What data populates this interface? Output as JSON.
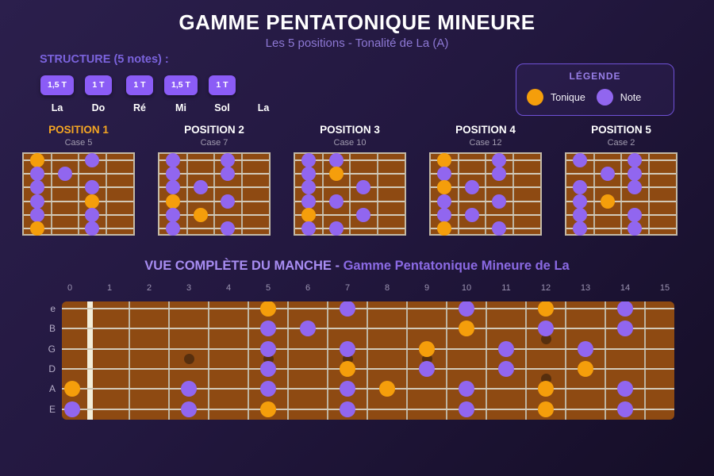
{
  "header": {
    "title": "GAMME PENTATONIQUE MINEURE",
    "subtitle": "Les 5 positions - Tonalité de La (A)"
  },
  "structure": {
    "label": "STRUCTURE (5 notes) :",
    "intervals": [
      "1,5 T",
      "1 T",
      "1 T",
      "1,5 T",
      "1 T"
    ],
    "notes": [
      "La",
      "Do",
      "Ré",
      "Mi",
      "Sol",
      "La"
    ]
  },
  "legend": {
    "title": "LÉGENDE",
    "items": [
      {
        "label": "Tonique",
        "color": "#f59e0b"
      },
      {
        "label": "Note",
        "color": "#9166ef"
      }
    ]
  },
  "colors": {
    "tonique": "#f59e0b",
    "note": "#9166ef",
    "board_brown": "#8e4a12",
    "position1_title": "#f5a623"
  },
  "positions": [
    {
      "title": "POSITION 1",
      "case_label": "Case 5",
      "title_color": "#f5a623",
      "notes": [
        {
          "s": 0,
          "f": 1,
          "t": "T"
        },
        {
          "s": 0,
          "f": 3,
          "t": "N"
        },
        {
          "s": 1,
          "f": 1,
          "t": "N"
        },
        {
          "s": 1,
          "f": 2,
          "t": "N"
        },
        {
          "s": 2,
          "f": 1,
          "t": "N"
        },
        {
          "s": 2,
          "f": 3,
          "t": "N"
        },
        {
          "s": 3,
          "f": 1,
          "t": "N"
        },
        {
          "s": 3,
          "f": 3,
          "t": "T"
        },
        {
          "s": 4,
          "f": 1,
          "t": "N"
        },
        {
          "s": 4,
          "f": 3,
          "t": "N"
        },
        {
          "s": 5,
          "f": 1,
          "t": "T"
        },
        {
          "s": 5,
          "f": 3,
          "t": "N"
        }
      ]
    },
    {
      "title": "POSITION 2",
      "case_label": "Case 7",
      "title_color": "#ffffff",
      "notes": [
        {
          "s": 0,
          "f": 1,
          "t": "N"
        },
        {
          "s": 0,
          "f": 3,
          "t": "N"
        },
        {
          "s": 1,
          "f": 1,
          "t": "N"
        },
        {
          "s": 1,
          "f": 3,
          "t": "N"
        },
        {
          "s": 2,
          "f": 1,
          "t": "N"
        },
        {
          "s": 2,
          "f": 2,
          "t": "N"
        },
        {
          "s": 3,
          "f": 1,
          "t": "T"
        },
        {
          "s": 3,
          "f": 3,
          "t": "N"
        },
        {
          "s": 4,
          "f": 1,
          "t": "N"
        },
        {
          "s": 4,
          "f": 2,
          "t": "T"
        },
        {
          "s": 5,
          "f": 1,
          "t": "N"
        },
        {
          "s": 5,
          "f": 3,
          "t": "N"
        }
      ]
    },
    {
      "title": "POSITION 3",
      "case_label": "Case 10",
      "title_color": "#ffffff",
      "notes": [
        {
          "s": 0,
          "f": 1,
          "t": "N"
        },
        {
          "s": 0,
          "f": 2,
          "t": "N"
        },
        {
          "s": 1,
          "f": 1,
          "t": "N"
        },
        {
          "s": 1,
          "f": 2,
          "t": "T"
        },
        {
          "s": 2,
          "f": 1,
          "t": "N"
        },
        {
          "s": 2,
          "f": 3,
          "t": "N"
        },
        {
          "s": 3,
          "f": 1,
          "t": "N"
        },
        {
          "s": 3,
          "f": 2,
          "t": "N"
        },
        {
          "s": 4,
          "f": 1,
          "t": "T"
        },
        {
          "s": 4,
          "f": 3,
          "t": "N"
        },
        {
          "s": 5,
          "f": 1,
          "t": "N"
        },
        {
          "s": 5,
          "f": 2,
          "t": "N"
        }
      ]
    },
    {
      "title": "POSITION 4",
      "case_label": "Case 12",
      "title_color": "#ffffff",
      "notes": [
        {
          "s": 0,
          "f": 1,
          "t": "T"
        },
        {
          "s": 0,
          "f": 3,
          "t": "N"
        },
        {
          "s": 1,
          "f": 1,
          "t": "N"
        },
        {
          "s": 1,
          "f": 3,
          "t": "N"
        },
        {
          "s": 2,
          "f": 1,
          "t": "T"
        },
        {
          "s": 2,
          "f": 2,
          "t": "N"
        },
        {
          "s": 3,
          "f": 1,
          "t": "N"
        },
        {
          "s": 3,
          "f": 3,
          "t": "N"
        },
        {
          "s": 4,
          "f": 1,
          "t": "N"
        },
        {
          "s": 4,
          "f": 2,
          "t": "N"
        },
        {
          "s": 5,
          "f": 1,
          "t": "T"
        },
        {
          "s": 5,
          "f": 3,
          "t": "N"
        }
      ]
    },
    {
      "title": "POSITION 5",
      "case_label": "Case 2",
      "title_color": "#ffffff",
      "notes": [
        {
          "s": 0,
          "f": 1,
          "t": "N"
        },
        {
          "s": 0,
          "f": 3,
          "t": "N"
        },
        {
          "s": 1,
          "f": 2,
          "t": "N"
        },
        {
          "s": 1,
          "f": 3,
          "t": "N"
        },
        {
          "s": 2,
          "f": 1,
          "t": "N"
        },
        {
          "s": 2,
          "f": 3,
          "t": "N"
        },
        {
          "s": 3,
          "f": 1,
          "t": "N"
        },
        {
          "s": 3,
          "f": 2,
          "t": "T"
        },
        {
          "s": 4,
          "f": 1,
          "t": "N"
        },
        {
          "s": 4,
          "f": 3,
          "t": "N"
        },
        {
          "s": 5,
          "f": 1,
          "t": "N"
        },
        {
          "s": 5,
          "f": 3,
          "t": "N"
        }
      ]
    }
  ],
  "fretboard": {
    "title_part1": "VUE COMPLÈTE DU MANCHE - ",
    "title_part2": "Gamme Pentatonique Mineure de La",
    "fret_numbers": [
      "0",
      "1",
      "2",
      "3",
      "4",
      "5",
      "6",
      "7",
      "8",
      "9",
      "10",
      "11",
      "12",
      "13",
      "14",
      "15"
    ],
    "string_labels": [
      "e",
      "B",
      "G",
      "D",
      "A",
      "E"
    ],
    "inlays_single": [
      3,
      5,
      7,
      9
    ],
    "inlays_double": [
      12
    ],
    "notes": [
      {
        "s": 0,
        "f": 5,
        "t": "T"
      },
      {
        "s": 0,
        "f": 7,
        "t": "N"
      },
      {
        "s": 0,
        "f": 10,
        "t": "N"
      },
      {
        "s": 0,
        "f": 12,
        "t": "T"
      },
      {
        "s": 0,
        "f": 14,
        "t": "N"
      },
      {
        "s": 1,
        "f": 5,
        "t": "N"
      },
      {
        "s": 1,
        "f": 6,
        "t": "N"
      },
      {
        "s": 1,
        "f": 10,
        "t": "T"
      },
      {
        "s": 1,
        "f": 12,
        "t": "N"
      },
      {
        "s": 1,
        "f": 14,
        "t": "N"
      },
      {
        "s": 2,
        "f": 5,
        "t": "N"
      },
      {
        "s": 2,
        "f": 7,
        "t": "N"
      },
      {
        "s": 2,
        "f": 9,
        "t": "T"
      },
      {
        "s": 2,
        "f": 11,
        "t": "N"
      },
      {
        "s": 2,
        "f": 13,
        "t": "N"
      },
      {
        "s": 3,
        "f": 5,
        "t": "N"
      },
      {
        "s": 3,
        "f": 7,
        "t": "T"
      },
      {
        "s": 3,
        "f": 9,
        "t": "N"
      },
      {
        "s": 3,
        "f": 11,
        "t": "N"
      },
      {
        "s": 3,
        "f": 13,
        "t": "T"
      },
      {
        "s": 4,
        "f": 0,
        "t": "T"
      },
      {
        "s": 4,
        "f": 3,
        "t": "N"
      },
      {
        "s": 4,
        "f": 5,
        "t": "N"
      },
      {
        "s": 4,
        "f": 7,
        "t": "N"
      },
      {
        "s": 4,
        "f": 8,
        "t": "T"
      },
      {
        "s": 4,
        "f": 10,
        "t": "N"
      },
      {
        "s": 4,
        "f": 12,
        "t": "T"
      },
      {
        "s": 4,
        "f": 14,
        "t": "N"
      },
      {
        "s": 5,
        "f": 0,
        "t": "N"
      },
      {
        "s": 5,
        "f": 3,
        "t": "N"
      },
      {
        "s": 5,
        "f": 5,
        "t": "T"
      },
      {
        "s": 5,
        "f": 7,
        "t": "N"
      },
      {
        "s": 5,
        "f": 10,
        "t": "N"
      },
      {
        "s": 5,
        "f": 12,
        "t": "T"
      },
      {
        "s": 5,
        "f": 14,
        "t": "N"
      }
    ]
  }
}
